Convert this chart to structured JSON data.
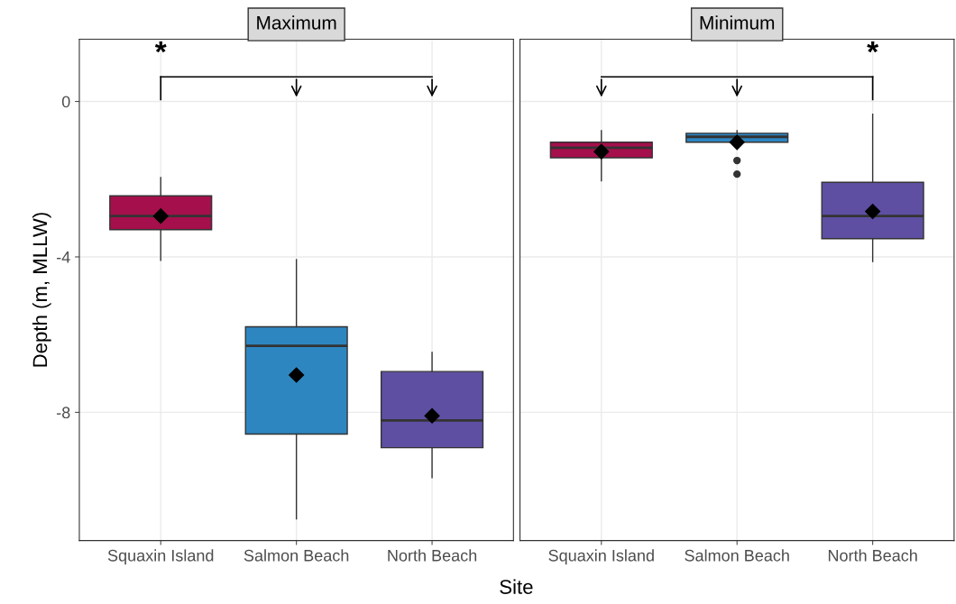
{
  "chart_data": [
    {
      "type": "box",
      "title": "Maximum",
      "xlabel": "Site",
      "ylabel": "Depth (m, MLLW)",
      "categories": [
        "Squaxin Island",
        "Salmon Beach",
        "North Beach"
      ],
      "colors": [
        "#a50f4b",
        "#2e86c1",
        "#5e4fa2"
      ],
      "boxes": [
        {
          "low": -4.09,
          "q1": -3.3,
          "median": -2.95,
          "q3": -2.43,
          "high": -1.96,
          "mean": -2.95
        },
        {
          "low": -10.74,
          "q1": -8.56,
          "median": -6.29,
          "q3": -5.8,
          "high": -4.07,
          "mean": -7.04
        },
        {
          "low": -9.68,
          "q1": -8.91,
          "median": -8.21,
          "q3": -6.95,
          "high": -6.46,
          "mean": -8.09
        }
      ],
      "ylim": [
        -11.3,
        1.6
      ],
      "yticks": [
        0,
        -4,
        -8
      ],
      "grid": true,
      "annotations": [
        "*"
      ]
    },
    {
      "type": "box",
      "title": "Minimum",
      "categories": [
        "Squaxin Island",
        "Salmon Beach",
        "North Beach"
      ],
      "colors": [
        "#a50f4b",
        "#2e86c1",
        "#5e4fa2"
      ],
      "boxes": [
        {
          "low": -2.04,
          "q1": -1.45,
          "median": -1.19,
          "q3": -1.05,
          "high": -0.75,
          "mean": -1.29
        },
        {
          "low": -1.05,
          "q1": -1.05,
          "median": -0.91,
          "q3": -0.82,
          "high": -0.75,
          "mean": -1.05,
          "outliers": [
            -1.52,
            -1.87
          ]
        },
        {
          "low": -4.12,
          "q1": -3.53,
          "median": -2.95,
          "q3": -2.08,
          "high": -0.33,
          "mean": -2.83
        }
      ],
      "ylim": [
        -11.3,
        1.6
      ],
      "yticks": [
        0,
        -4,
        -8
      ],
      "grid": true,
      "tick_labels": "x",
      "annotations": [
        "*"
      ]
    }
  ]
}
